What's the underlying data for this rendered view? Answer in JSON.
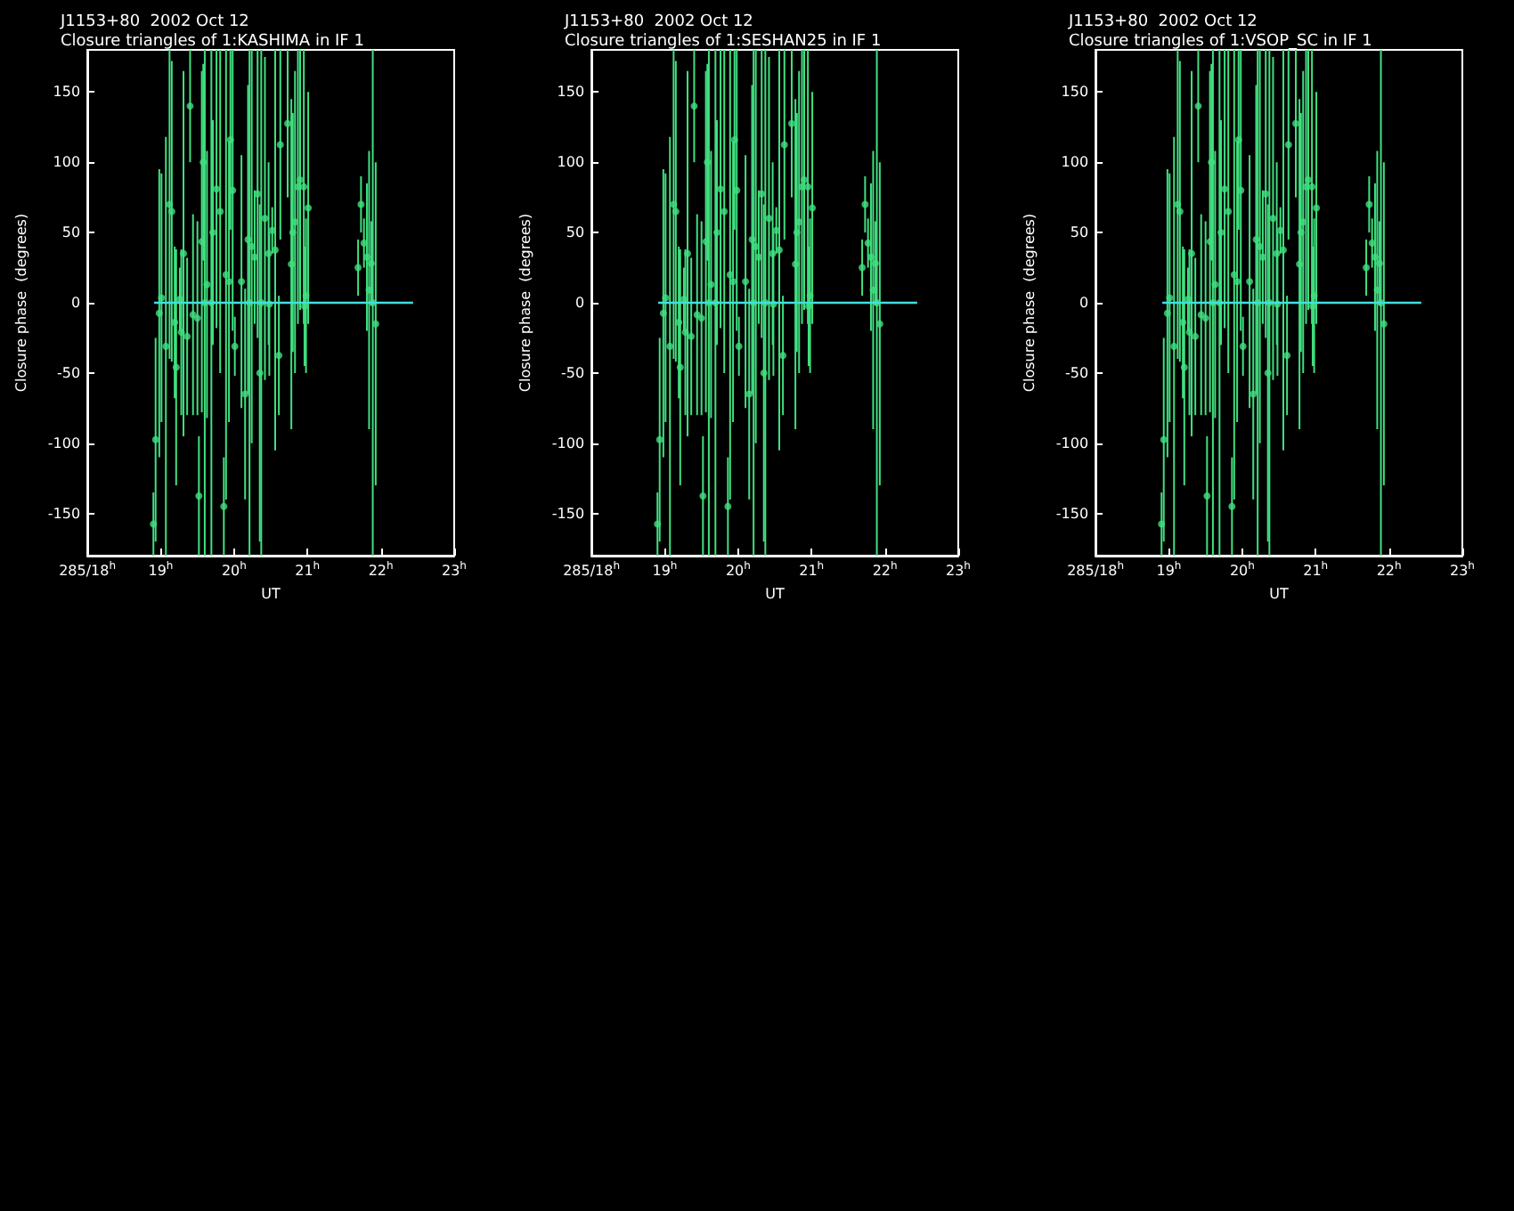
{
  "chart_data": [
    {
      "type": "scatter",
      "title": "J1153+80  2002 Oct 12",
      "subtitle": "Closure triangles of 1:KASHIMA in IF 1",
      "xlabel": "UT",
      "ylabel": "Closure phase  (degrees)",
      "xlim": [
        18,
        23
      ],
      "xticks": [
        {
          "value": 18,
          "label": "285/18$^{h}$"
        },
        {
          "value": 19,
          "label": "19$^{h}$"
        },
        {
          "value": 20,
          "label": "20$^{h}$"
        },
        {
          "value": 21,
          "label": "21$^{h}$"
        },
        {
          "value": 22,
          "label": "22$^{h}$"
        },
        {
          "value": 23,
          "label": "23$^{h}$"
        }
      ],
      "ylim": [
        -180,
        180
      ],
      "yticks": [
        -150,
        -100,
        -50,
        0,
        50,
        100,
        150
      ],
      "grid": false,
      "marker": "circle",
      "series": [
        {
          "color": "#40e080",
          "x": [
            18.9,
            18.93,
            18.98,
            19.01,
            19.07,
            19.12,
            19.15,
            19.19,
            19.21,
            19.26,
            19.28,
            19.31,
            19.36,
            19.4,
            19.44,
            19.5,
            19.52,
            19.56,
            19.58,
            19.6,
            19.63,
            19.69,
            19.71,
            19.76,
            19.81,
            19.86,
            19.89,
            19.93,
            19.95,
            19.98,
            20.01,
            20.1,
            20.15,
            20.19,
            20.21,
            20.24,
            20.28,
            20.32,
            20.35,
            20.37,
            20.42,
            20.47,
            20.48,
            20.52,
            20.56,
            20.61,
            20.63,
            20.73,
            20.78,
            20.8,
            20.83,
            20.87,
            20.9,
            20.95,
            20.96,
            20.98,
            21.01,
            21.69,
            21.73,
            21.77,
            21.81,
            21.84,
            21.87,
            21.89,
            21.93
          ],
          "values": [
            -157.5,
            -97.5,
            -7.5,
            3.5,
            -31,
            70,
            65,
            -14,
            -46,
            2.5,
            -21,
            35,
            -24,
            140,
            -8.5,
            -11,
            -137.5,
            43.5,
            100,
            0,
            13,
            0,
            50,
            81,
            65,
            -145,
            20,
            15,
            116,
            80,
            -31,
            15,
            -65,
            45,
            0,
            40,
            32.5,
            77.5,
            -50,
            0,
            60,
            35,
            -1,
            51.5,
            37.5,
            -37.5,
            112.5,
            127.5,
            27.5,
            50,
            57.5,
            82.5,
            87.5,
            82.5,
            -2.5,
            5,
            67.5,
            25,
            70,
            42.5,
            32.5,
            9,
            28,
            0,
            -15
          ],
          "errors": [
            [
              -180,
              -135
            ],
            [
              -170,
              -25
            ],
            [
              -110,
              95
            ],
            [
              -85,
              92
            ],
            [
              -180,
              118
            ],
            [
              -40,
              180
            ],
            [
              -42,
              172
            ],
            [
              -68,
              40
            ],
            [
              -130,
              38
            ],
            [
              -20,
              25
            ],
            [
              -80,
              38
            ],
            [
              -95,
              165
            ],
            [
              -80,
              32
            ],
            [
              100,
              180
            ],
            [
              -80,
              63
            ],
            [
              -80,
              58
            ],
            [
              -180,
              -95
            ],
            [
              -78,
              165
            ],
            [
              30,
              170
            ],
            [
              -180,
              180
            ],
            [
              -82,
              108
            ],
            [
              -180,
              180
            ],
            [
              -30,
              130
            ],
            [
              -18,
              180
            ],
            [
              -50,
              180
            ],
            [
              -180,
              -110
            ],
            [
              -140,
              180
            ],
            [
              -85,
              115
            ],
            [
              52,
              180
            ],
            [
              -20,
              180
            ],
            [
              -52,
              -10
            ],
            [
              -75,
              105
            ],
            [
              -140,
              10
            ],
            [
              -65,
              155
            ],
            [
              -180,
              180
            ],
            [
              -100,
              180
            ],
            [
              -15,
              80
            ],
            [
              -25,
              180
            ],
            [
              -170,
              70
            ],
            [
              -180,
              180
            ],
            [
              -55,
              175
            ],
            [
              -30,
              100
            ],
            [
              -52,
              50
            ],
            [
              35,
              68
            ],
            [
              -105,
              180
            ],
            [
              -80,
              5
            ],
            [
              45,
              180
            ],
            [
              75,
              180
            ],
            [
              -90,
              145
            ],
            [
              -35,
              135
            ],
            [
              -50,
              165
            ],
            [
              -15,
              180
            ],
            [
              -5,
              180
            ],
            [
              -15,
              180
            ],
            [
              -45,
              40
            ],
            [
              -50,
              60
            ],
            [
              -15,
              150
            ],
            [
              5,
              45
            ],
            [
              50,
              90
            ],
            [
              25,
              60
            ],
            [
              -20,
              85
            ],
            [
              -90,
              108
            ],
            [
              -2,
              58
            ],
            [
              -180,
              180
            ],
            [
              -130,
              100
            ]
          ]
        },
        {
          "type": "line",
          "marker": "none",
          "color": "#40e0e0",
          "x": [
            18.91,
            22.44
          ],
          "values": [
            0,
            0
          ]
        }
      ]
    },
    {
      "type": "scatter",
      "title": "J1153+80  2002 Oct 12",
      "subtitle": "Closure triangles of 1:SESHAN25 in IF 1",
      "xlabel": "UT",
      "ylabel": "Closure phase  (degrees)",
      "xlim": [
        18,
        23
      ],
      "xticks": [
        {
          "value": 18,
          "label": "285/18$^{h}$"
        },
        {
          "value": 19,
          "label": "19$^{h}$"
        },
        {
          "value": 20,
          "label": "20$^{h}$"
        },
        {
          "value": 21,
          "label": "21$^{h}$"
        },
        {
          "value": 22,
          "label": "22$^{h}$"
        },
        {
          "value": 23,
          "label": "23$^{h}$"
        }
      ],
      "ylim": [
        -180,
        180
      ],
      "yticks": [
        -150,
        -100,
        -50,
        0,
        50,
        100,
        150
      ],
      "grid": false,
      "marker": "circle",
      "series": [
        {
          "color": "#40e080",
          "x": [
            18.9,
            18.93,
            18.98,
            19.01,
            19.07,
            19.12,
            19.15,
            19.19,
            19.21,
            19.26,
            19.28,
            19.31,
            19.36,
            19.4,
            19.44,
            19.5,
            19.52,
            19.56,
            19.58,
            19.6,
            19.63,
            19.69,
            19.71,
            19.76,
            19.81,
            19.86,
            19.89,
            19.93,
            19.95,
            19.98,
            20.01,
            20.1,
            20.15,
            20.19,
            20.21,
            20.24,
            20.28,
            20.32,
            20.35,
            20.37,
            20.42,
            20.47,
            20.48,
            20.52,
            20.56,
            20.61,
            20.63,
            20.73,
            20.78,
            20.8,
            20.83,
            20.87,
            20.9,
            20.95,
            20.96,
            20.98,
            21.01,
            21.69,
            21.73,
            21.77,
            21.81,
            21.84,
            21.87,
            21.89,
            21.93
          ],
          "values": [
            -157.5,
            -97.5,
            -7.5,
            3.5,
            -31,
            70,
            65,
            -14,
            -46,
            2.5,
            -21,
            35,
            -24,
            140,
            -8.5,
            -11,
            -137.5,
            43.5,
            100,
            0,
            13,
            0,
            50,
            81,
            65,
            -145,
            20,
            15,
            116,
            80,
            -31,
            15,
            -65,
            45,
            0,
            40,
            32.5,
            77.5,
            -50,
            0,
            60,
            35,
            -1,
            51.5,
            37.5,
            -37.5,
            112.5,
            127.5,
            27.5,
            50,
            57.5,
            82.5,
            87.5,
            82.5,
            -2.5,
            5,
            67.5,
            25,
            70,
            42.5,
            32.5,
            9,
            28,
            0,
            -15
          ],
          "errors": [
            [
              -180,
              -135
            ],
            [
              -170,
              -25
            ],
            [
              -110,
              95
            ],
            [
              -85,
              92
            ],
            [
              -180,
              118
            ],
            [
              -40,
              180
            ],
            [
              -42,
              172
            ],
            [
              -68,
              40
            ],
            [
              -130,
              38
            ],
            [
              -20,
              25
            ],
            [
              -80,
              38
            ],
            [
              -95,
              165
            ],
            [
              -80,
              32
            ],
            [
              100,
              180
            ],
            [
              -80,
              63
            ],
            [
              -80,
              58
            ],
            [
              -180,
              -95
            ],
            [
              -78,
              165
            ],
            [
              30,
              170
            ],
            [
              -180,
              180
            ],
            [
              -82,
              108
            ],
            [
              -180,
              180
            ],
            [
              -30,
              130
            ],
            [
              -18,
              180
            ],
            [
              -50,
              180
            ],
            [
              -180,
              -110
            ],
            [
              -140,
              180
            ],
            [
              -85,
              115
            ],
            [
              52,
              180
            ],
            [
              -20,
              180
            ],
            [
              -52,
              -10
            ],
            [
              -75,
              105
            ],
            [
              -140,
              10
            ],
            [
              -65,
              155
            ],
            [
              -180,
              180
            ],
            [
              -100,
              180
            ],
            [
              -15,
              80
            ],
            [
              -25,
              180
            ],
            [
              -170,
              70
            ],
            [
              -180,
              180
            ],
            [
              -55,
              175
            ],
            [
              -30,
              100
            ],
            [
              -52,
              50
            ],
            [
              35,
              68
            ],
            [
              -105,
              180
            ],
            [
              -80,
              5
            ],
            [
              45,
              180
            ],
            [
              75,
              180
            ],
            [
              -90,
              145
            ],
            [
              -35,
              135
            ],
            [
              -50,
              165
            ],
            [
              -15,
              180
            ],
            [
              -5,
              180
            ],
            [
              -15,
              180
            ],
            [
              -45,
              40
            ],
            [
              -50,
              60
            ],
            [
              -15,
              150
            ],
            [
              5,
              45
            ],
            [
              50,
              90
            ],
            [
              25,
              60
            ],
            [
              -20,
              85
            ],
            [
              -90,
              108
            ],
            [
              -2,
              58
            ],
            [
              -180,
              180
            ],
            [
              -130,
              100
            ]
          ]
        },
        {
          "type": "line",
          "marker": "none",
          "color": "#40e0e0",
          "x": [
            18.91,
            22.44
          ],
          "values": [
            0,
            0
          ]
        }
      ]
    },
    {
      "type": "scatter",
      "title": "J1153+80  2002 Oct 12",
      "subtitle": "Closure triangles of 1:VSOP_SC in IF 1",
      "xlabel": "UT",
      "ylabel": "Closure phase  (degrees)",
      "xlim": [
        18,
        23
      ],
      "xticks": [
        {
          "value": 18,
          "label": "285/18$^{h}$"
        },
        {
          "value": 19,
          "label": "19$^{h}$"
        },
        {
          "value": 20,
          "label": "20$^{h}$"
        },
        {
          "value": 21,
          "label": "21$^{h}$"
        },
        {
          "value": 22,
          "label": "22$^{h}$"
        },
        {
          "value": 23,
          "label": "23$^{h}$"
        }
      ],
      "ylim": [
        -180,
        180
      ],
      "yticks": [
        -150,
        -100,
        -50,
        0,
        50,
        100,
        150
      ],
      "grid": false,
      "marker": "circle",
      "series": [
        {
          "color": "#40e080",
          "x": [
            18.9,
            18.93,
            18.98,
            19.01,
            19.07,
            19.12,
            19.15,
            19.19,
            19.21,
            19.26,
            19.28,
            19.31,
            19.36,
            19.4,
            19.44,
            19.5,
            19.52,
            19.56,
            19.58,
            19.6,
            19.63,
            19.69,
            19.71,
            19.76,
            19.81,
            19.86,
            19.89,
            19.93,
            19.95,
            19.98,
            20.01,
            20.1,
            20.15,
            20.19,
            20.21,
            20.24,
            20.28,
            20.32,
            20.35,
            20.37,
            20.42,
            20.47,
            20.48,
            20.52,
            20.56,
            20.61,
            20.63,
            20.73,
            20.78,
            20.8,
            20.83,
            20.87,
            20.9,
            20.95,
            20.96,
            20.98,
            21.01,
            21.69,
            21.73,
            21.77,
            21.81,
            21.84,
            21.87,
            21.89,
            21.93
          ],
          "values": [
            -157.5,
            -97.5,
            -7.5,
            3.5,
            -31,
            70,
            65,
            -14,
            -46,
            2.5,
            -21,
            35,
            -24,
            140,
            -8.5,
            -11,
            -137.5,
            43.5,
            100,
            0,
            13,
            0,
            50,
            81,
            65,
            -145,
            20,
            15,
            116,
            80,
            -31,
            15,
            -65,
            45,
            0,
            40,
            32.5,
            77.5,
            -50,
            0,
            60,
            35,
            -1,
            51.5,
            37.5,
            -37.5,
            112.5,
            127.5,
            27.5,
            50,
            57.5,
            82.5,
            87.5,
            82.5,
            -2.5,
            5,
            67.5,
            25,
            70,
            42.5,
            32.5,
            9,
            28,
            0,
            -15
          ],
          "errors": [
            [
              -180,
              -135
            ],
            [
              -170,
              -25
            ],
            [
              -110,
              95
            ],
            [
              -85,
              92
            ],
            [
              -180,
              118
            ],
            [
              -40,
              180
            ],
            [
              -42,
              172
            ],
            [
              -68,
              40
            ],
            [
              -130,
              38
            ],
            [
              -20,
              25
            ],
            [
              -80,
              38
            ],
            [
              -95,
              165
            ],
            [
              -80,
              32
            ],
            [
              100,
              180
            ],
            [
              -80,
              63
            ],
            [
              -80,
              58
            ],
            [
              -180,
              -95
            ],
            [
              -78,
              165
            ],
            [
              30,
              170
            ],
            [
              -180,
              180
            ],
            [
              -82,
              108
            ],
            [
              -180,
              180
            ],
            [
              -30,
              130
            ],
            [
              -18,
              180
            ],
            [
              -50,
              180
            ],
            [
              -180,
              -110
            ],
            [
              -140,
              180
            ],
            [
              -85,
              115
            ],
            [
              52,
              180
            ],
            [
              -20,
              180
            ],
            [
              -52,
              -10
            ],
            [
              -75,
              105
            ],
            [
              -140,
              10
            ],
            [
              -65,
              155
            ],
            [
              -180,
              180
            ],
            [
              -100,
              180
            ],
            [
              -15,
              80
            ],
            [
              -25,
              180
            ],
            [
              -170,
              70
            ],
            [
              -180,
              180
            ],
            [
              -55,
              175
            ],
            [
              -30,
              100
            ],
            [
              -52,
              50
            ],
            [
              35,
              68
            ],
            [
              -105,
              180
            ],
            [
              -80,
              5
            ],
            [
              45,
              180
            ],
            [
              75,
              180
            ],
            [
              -90,
              145
            ],
            [
              -35,
              135
            ],
            [
              -50,
              165
            ],
            [
              -15,
              180
            ],
            [
              -5,
              180
            ],
            [
              -15,
              180
            ],
            [
              -45,
              40
            ],
            [
              -50,
              60
            ],
            [
              -15,
              150
            ],
            [
              5,
              45
            ],
            [
              50,
              90
            ],
            [
              25,
              60
            ],
            [
              -20,
              85
            ],
            [
              -90,
              108
            ],
            [
              -2,
              58
            ],
            [
              -180,
              180
            ],
            [
              -130,
              100
            ]
          ]
        },
        {
          "type": "line",
          "marker": "none",
          "color": "#40e0e0",
          "x": [
            18.91,
            22.44
          ],
          "values": [
            0,
            0
          ]
        }
      ]
    }
  ]
}
